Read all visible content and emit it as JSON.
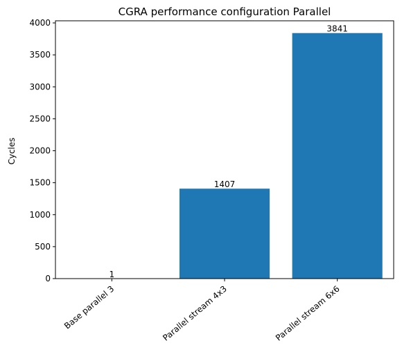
{
  "chart_data": {
    "type": "bar",
    "title": "CGRA performance configuration Parallel",
    "xlabel": "",
    "ylabel": "Cycles",
    "categories": [
      "Base parallel 3",
      "Parallel stream 4x3",
      "Parallel stream 6x6"
    ],
    "values": [
      1,
      1407,
      3841
    ],
    "data_labels": [
      "1",
      "1407",
      "3841"
    ],
    "ylim": [
      0,
      4033
    ],
    "yticks": [
      0,
      500,
      1000,
      1500,
      2000,
      2500,
      3000,
      3500,
      4000
    ],
    "x_tick_rotation": -40,
    "grid": false,
    "legend": "none",
    "colors": {
      "bar": "#1f77b4",
      "axis": "#000000"
    }
  }
}
